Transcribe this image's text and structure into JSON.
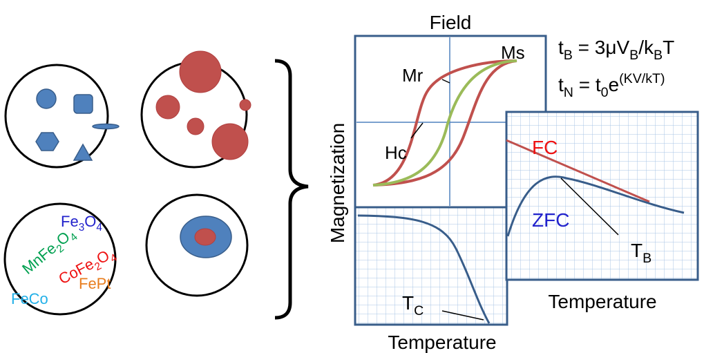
{
  "materials": {
    "fe3o4": [
      "Fe",
      "3",
      "O",
      "4"
    ],
    "mnfe2o4": [
      "MnFe",
      "2",
      "O",
      "4"
    ],
    "cofe2o4": [
      "CoFe",
      "2",
      "O",
      "4"
    ],
    "feco": "FeCo",
    "fept": "FePt"
  },
  "hysteresis": {
    "x_label": "Field",
    "y_label": "Magnetization",
    "mr": "Mr",
    "ms": "Ms",
    "hc": "Hc"
  },
  "curie": {
    "x_label": "Temperature",
    "tc": [
      "T",
      "C"
    ]
  },
  "fc_zfc": {
    "x_label": "Temperature",
    "fc": "FC",
    "zfc": "ZFC",
    "tb": [
      "T",
      "B"
    ]
  },
  "equations": [
    [
      "t",
      "B",
      " = 3μV",
      "B",
      "/k",
      "B",
      "T"
    ],
    [
      "t",
      "N",
      " = t",
      "0",
      "e",
      "(KV/kT)"
    ]
  ]
}
